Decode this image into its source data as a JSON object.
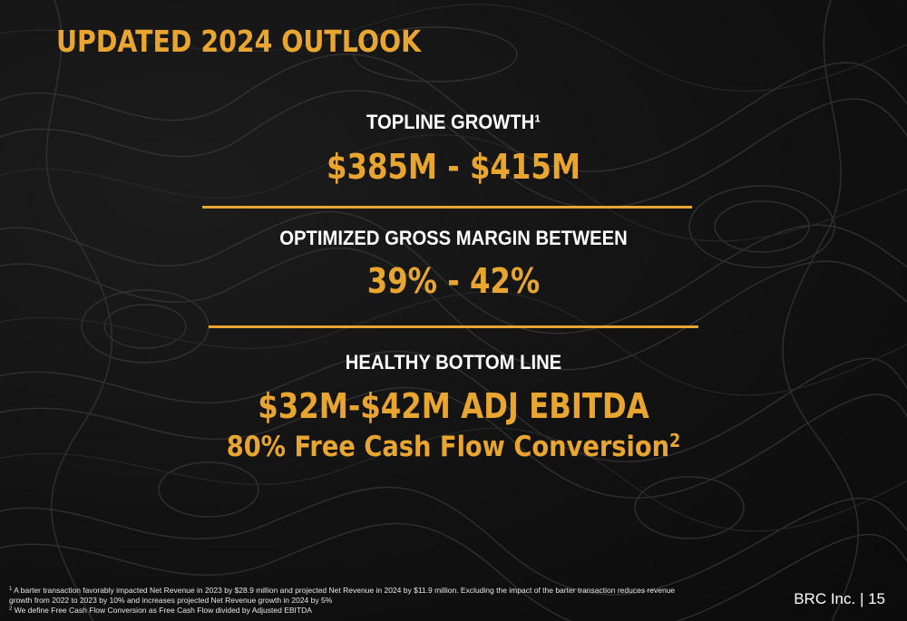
{
  "colors": {
    "accent": "#E8A530",
    "text": "#FFFFFF",
    "background": "#111111"
  },
  "slide": {
    "title": "UPDATED 2024 OUTLOOK",
    "sections": [
      {
        "heading": "TOPLINE GROWTH¹",
        "value": "$385M - $415M"
      },
      {
        "heading": "OPTIMIZED GROSS MARGIN BETWEEN",
        "value": "39% - 42%"
      },
      {
        "heading": "HEALTHY BOTTOM LINE",
        "value": "$32M-$42M ADJ EBITDA",
        "sub_value": "80% Free Cash Flow Conversion",
        "sub_value_mark": "2"
      }
    ],
    "footnotes": [
      {
        "mark": "1",
        "text": " A barter transaction favorably impacted Net Revenue in 2023 by $28.9 million and projected Net Revenue in 2024 by $11.9 million. Excluding the impact of the barter transaction reduces revenue growth from 2022 to 2023 by 10% and increases projected Net Revenue growth in 2024 by 5%"
      },
      {
        "mark": "2",
        "text": " We define Free Cash Flow Conversion as Free Cash Flow divided by Adjusted EBITDA"
      }
    ],
    "page_label": "BRC Inc. | 15"
  }
}
